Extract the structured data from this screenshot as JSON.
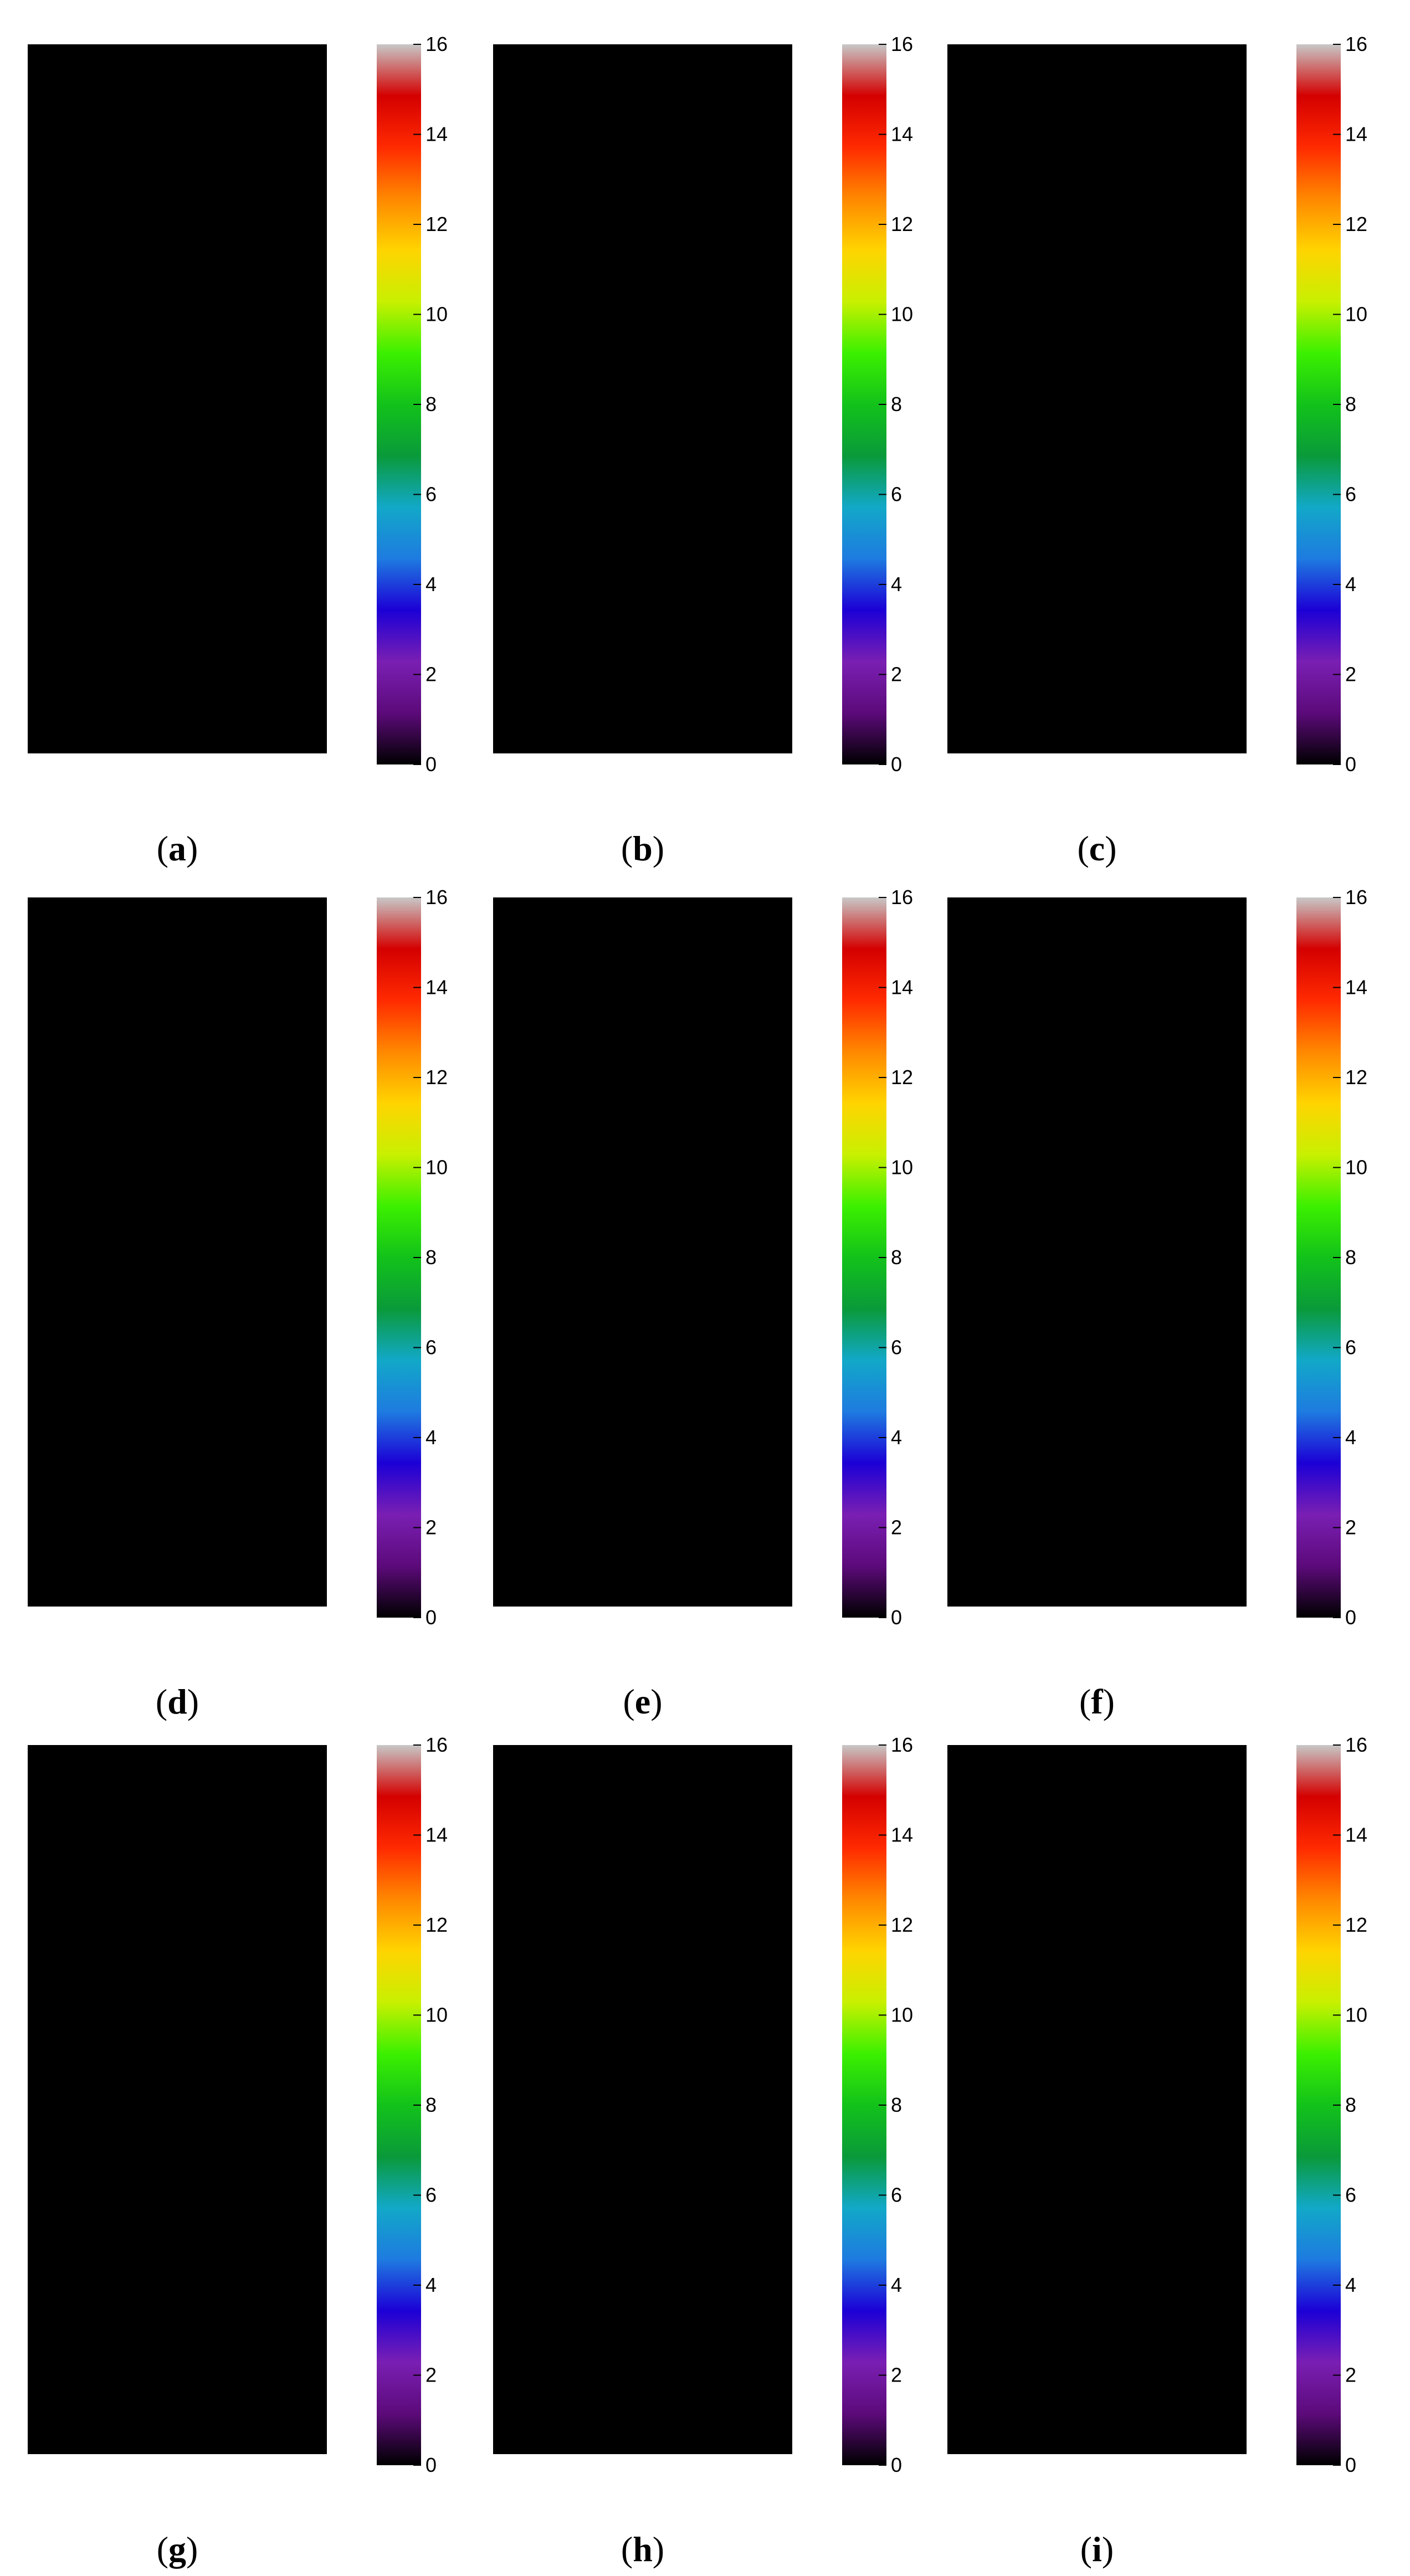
{
  "figure": {
    "panels": [
      {
        "id": "a",
        "label": "a"
      },
      {
        "id": "b",
        "label": "b"
      },
      {
        "id": "c",
        "label": "c"
      },
      {
        "id": "d",
        "label": "d"
      },
      {
        "id": "e",
        "label": "e"
      },
      {
        "id": "f",
        "label": "f"
      },
      {
        "id": "g",
        "label": "g"
      },
      {
        "id": "h",
        "label": "h"
      },
      {
        "id": "i",
        "label": "i"
      }
    ],
    "colorbar": {
      "min": 0,
      "max": 16,
      "ticks": [
        "0",
        "2",
        "4",
        "6",
        "8",
        "10",
        "12",
        "14",
        "16"
      ],
      "colormap": [
        "#000000",
        "#5c0a7a",
        "#7a1fb3",
        "#1c00d6",
        "#1e7be0",
        "#12a8c8",
        "#0a9a3a",
        "#12c21a",
        "#3cf000",
        "#c8f000",
        "#ffd400",
        "#ff8800",
        "#ff2a00",
        "#d40000",
        "#c8c8c8"
      ]
    },
    "class_colors": {
      "background": "#000000",
      "purple": "#5a10a0",
      "blue": "#1a40e0",
      "sky": "#2090d8",
      "teal": "#10a8b0",
      "dark_green": "#10a040",
      "green": "#20b020",
      "lime": "#40f000",
      "light_green": "#80f020",
      "yellow": "#f0d000",
      "orange": "#ffb000",
      "red": "#e00010",
      "gray": "#c8c8c8"
    }
  }
}
